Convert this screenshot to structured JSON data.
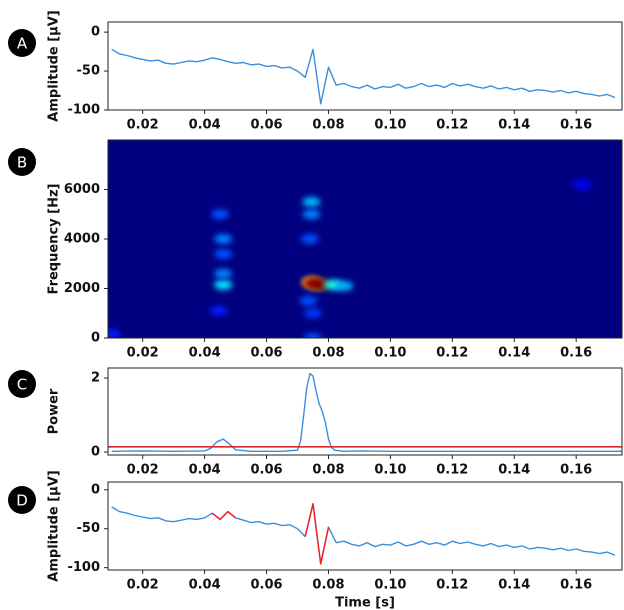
{
  "chart_data": [
    {
      "type": "line",
      "panel_label": "A",
      "ylabel": "Amplitude [µV]",
      "x": [
        0.01,
        0.0125,
        0.015,
        0.0175,
        0.02,
        0.0225,
        0.025,
        0.0275,
        0.03,
        0.0325,
        0.035,
        0.0375,
        0.04,
        0.0425,
        0.045,
        0.0475,
        0.05,
        0.0525,
        0.055,
        0.0575,
        0.06,
        0.0625,
        0.065,
        0.0675,
        0.07,
        0.0725,
        0.075,
        0.0775,
        0.08,
        0.0825,
        0.085,
        0.0875,
        0.09,
        0.0925,
        0.095,
        0.0975,
        0.1,
        0.1025,
        0.105,
        0.1075,
        0.11,
        0.1125,
        0.115,
        0.1175,
        0.12,
        0.1225,
        0.125,
        0.1275,
        0.13,
        0.1325,
        0.135,
        0.1375,
        0.14,
        0.1425,
        0.145,
        0.1475,
        0.15,
        0.1525,
        0.155,
        0.1575,
        0.16,
        0.1625,
        0.165,
        0.1675,
        0.17,
        0.1725
      ],
      "series": [
        {
          "color": "#3a8fdd",
          "values": [
            -22,
            -28,
            -30,
            -33,
            -35,
            -37,
            -36,
            -40,
            -41,
            -39,
            -37,
            -38,
            -36,
            -33,
            -35,
            -38,
            -40,
            -39,
            -42,
            -41,
            -44,
            -43,
            -46,
            -45,
            -50,
            -58,
            -22,
            -92,
            -45,
            -68,
            -66,
            -70,
            -72,
            -68,
            -73,
            -70,
            -71,
            -67,
            -72,
            -70,
            -66,
            -70,
            -68,
            -71,
            -66,
            -69,
            -67,
            -70,
            -72,
            -69,
            -73,
            -71,
            -74,
            -72,
            -76,
            -74,
            -75,
            -77,
            -75,
            -78,
            -76,
            -79,
            -80,
            -82,
            -80,
            -84
          ]
        }
      ],
      "xlim": [
        0.0088,
        0.1748
      ],
      "ylim": [
        -100,
        13
      ],
      "xticks": [
        0.02,
        0.04,
        0.06,
        0.08,
        {
          "value": 0.1,
          "label": "0.10"
        },
        0.12,
        0.14,
        0.16
      ],
      "yticks": [
        0,
        -50,
        -100
      ]
    },
    {
      "type": "heatmap",
      "panel_label": "B",
      "ylabel": "Frequency [Hz]",
      "colormap": "jet",
      "x": [
        0.0745,
        0.0765,
        0.0745,
        0.0755,
        0.0775,
        0.0815,
        0.046,
        0.046,
        0.046,
        0.046,
        0.045,
        0.0445,
        0.0745,
        0.0745,
        0.074,
        0.0735,
        0.075,
        0.075,
        0.01,
        0.162,
        0.085
      ],
      "y": [
        2250,
        2150,
        2250,
        2200,
        2150,
        2150,
        2150,
        2600,
        4000,
        3400,
        5000,
        1100,
        5500,
        5000,
        4000,
        1500,
        1000,
        0,
        150,
        6200,
        2100
      ],
      "values": [
        0.55,
        0.55,
        0.8,
        1.0,
        1.0,
        0.4,
        0.35,
        0.25,
        0.25,
        0.2,
        0.2,
        0.15,
        0.3,
        0.25,
        0.2,
        0.2,
        0.18,
        0.2,
        0.15,
        0.12,
        0.3
      ],
      "xlim": [
        0.0088,
        0.1748
      ],
      "ylim": [
        0,
        8000
      ],
      "xticks": [
        0.02,
        0.04,
        0.06,
        0.08,
        {
          "value": 0.1,
          "label": "0.10"
        },
        0.12,
        0.14,
        0.16
      ],
      "yticks": [
        0,
        2000,
        4000,
        6000
      ]
    },
    {
      "type": "line",
      "panel_label": "C",
      "ylabel": "Power",
      "x": [
        0.01,
        0.02,
        0.03,
        0.04,
        0.042,
        0.044,
        0.046,
        0.048,
        0.05,
        0.055,
        0.06,
        0.065,
        0.07,
        0.071,
        0.072,
        0.073,
        0.074,
        0.075,
        0.076,
        0.077,
        0.078,
        0.079,
        0.08,
        0.081,
        0.082,
        0.085,
        0.09,
        0.1,
        0.11,
        0.12,
        0.13,
        0.14,
        0.15,
        0.16,
        0.17,
        0.175
      ],
      "series": [
        {
          "color": "#3a8fdd",
          "values": [
            0.02,
            0.03,
            0.02,
            0.03,
            0.1,
            0.28,
            0.35,
            0.22,
            0.06,
            0.02,
            0.02,
            0.02,
            0.05,
            0.3,
            1.0,
            1.75,
            2.12,
            2.05,
            1.65,
            1.3,
            1.1,
            0.8,
            0.35,
            0.12,
            0.05,
            0.02,
            0.03,
            0.02,
            0.02,
            0.02,
            0.02,
            0.02,
            0.02,
            0.02,
            0.02,
            0.02
          ]
        }
      ],
      "threshold": {
        "value": 0.14,
        "color": "#d62728"
      },
      "xlim": [
        0.0088,
        0.1748
      ],
      "ylim": [
        -0.08,
        2.27
      ],
      "xticks": [
        0.02,
        0.04,
        0.06,
        0.08,
        {
          "value": 0.1,
          "label": "0.10"
        },
        0.12,
        0.14,
        0.16
      ],
      "yticks": [
        0,
        2
      ]
    },
    {
      "type": "line",
      "panel_label": "D",
      "ylabel": "Amplitude [µV]",
      "xlabel": "Time [s]",
      "x": [
        0.01,
        0.0125,
        0.015,
        0.0175,
        0.02,
        0.0225,
        0.025,
        0.0275,
        0.03,
        0.0325,
        0.035,
        0.0375,
        0.04,
        0.0425,
        0.045,
        0.0475,
        0.05,
        0.0525,
        0.055,
        0.0575,
        0.06,
        0.0625,
        0.065,
        0.0675,
        0.07,
        0.0725,
        0.075,
        0.0775,
        0.08,
        0.0825,
        0.085,
        0.0875,
        0.09,
        0.0925,
        0.095,
        0.0975,
        0.1,
        0.1025,
        0.105,
        0.1075,
        0.11,
        0.1125,
        0.115,
        0.1175,
        0.12,
        0.1225,
        0.125,
        0.1275,
        0.13,
        0.1325,
        0.135,
        0.1375,
        0.14,
        0.1425,
        0.145,
        0.1475,
        0.15,
        0.1525,
        0.155,
        0.1575,
        0.16,
        0.1625,
        0.165,
        0.1675,
        0.17,
        0.1725
      ],
      "series": [
        {
          "color": "#3a8fdd",
          "values": [
            -22,
            -28,
            -30,
            -33,
            -35,
            -37,
            -36,
            -40,
            -41,
            -39,
            -37,
            -38,
            -36,
            -30,
            -38,
            -28,
            -36,
            -39,
            -42,
            -41,
            -44,
            -43,
            -46,
            -45,
            -50,
            -60,
            -18,
            -95,
            -48,
            -68,
            -66,
            -70,
            -72,
            -68,
            -73,
            -70,
            -71,
            -67,
            -72,
            -70,
            -66,
            -70,
            -68,
            -71,
            -66,
            -69,
            -67,
            -70,
            -72,
            -69,
            -73,
            -71,
            -74,
            -72,
            -76,
            -74,
            -75,
            -77,
            -75,
            -78,
            -76,
            -79,
            -80,
            -82,
            -80,
            -84
          ]
        },
        {
          "color": "#ff1a1a",
          "values": [
            null,
            null,
            null,
            null,
            null,
            null,
            null,
            null,
            null,
            null,
            null,
            null,
            null,
            -30,
            -38,
            -28,
            -36,
            null,
            null,
            null,
            null,
            null,
            null,
            null,
            null,
            -60,
            -18,
            -95,
            -48,
            null,
            null,
            null,
            null,
            null,
            null,
            null,
            null,
            null,
            null,
            null,
            null,
            null,
            null,
            null,
            null,
            null,
            null,
            null,
            null,
            null,
            null,
            null,
            null,
            null,
            null,
            null,
            null,
            null,
            null,
            null,
            null,
            null,
            null,
            null,
            null,
            null
          ]
        }
      ],
      "xlim": [
        0.0088,
        0.1748
      ],
      "ylim": [
        -103,
        10
      ],
      "xticks": [
        0.02,
        0.04,
        0.06,
        0.08,
        {
          "value": 0.1,
          "label": "0.10"
        },
        0.12,
        0.14,
        0.16
      ],
      "yticks": [
        0,
        -50,
        -100
      ]
    }
  ]
}
